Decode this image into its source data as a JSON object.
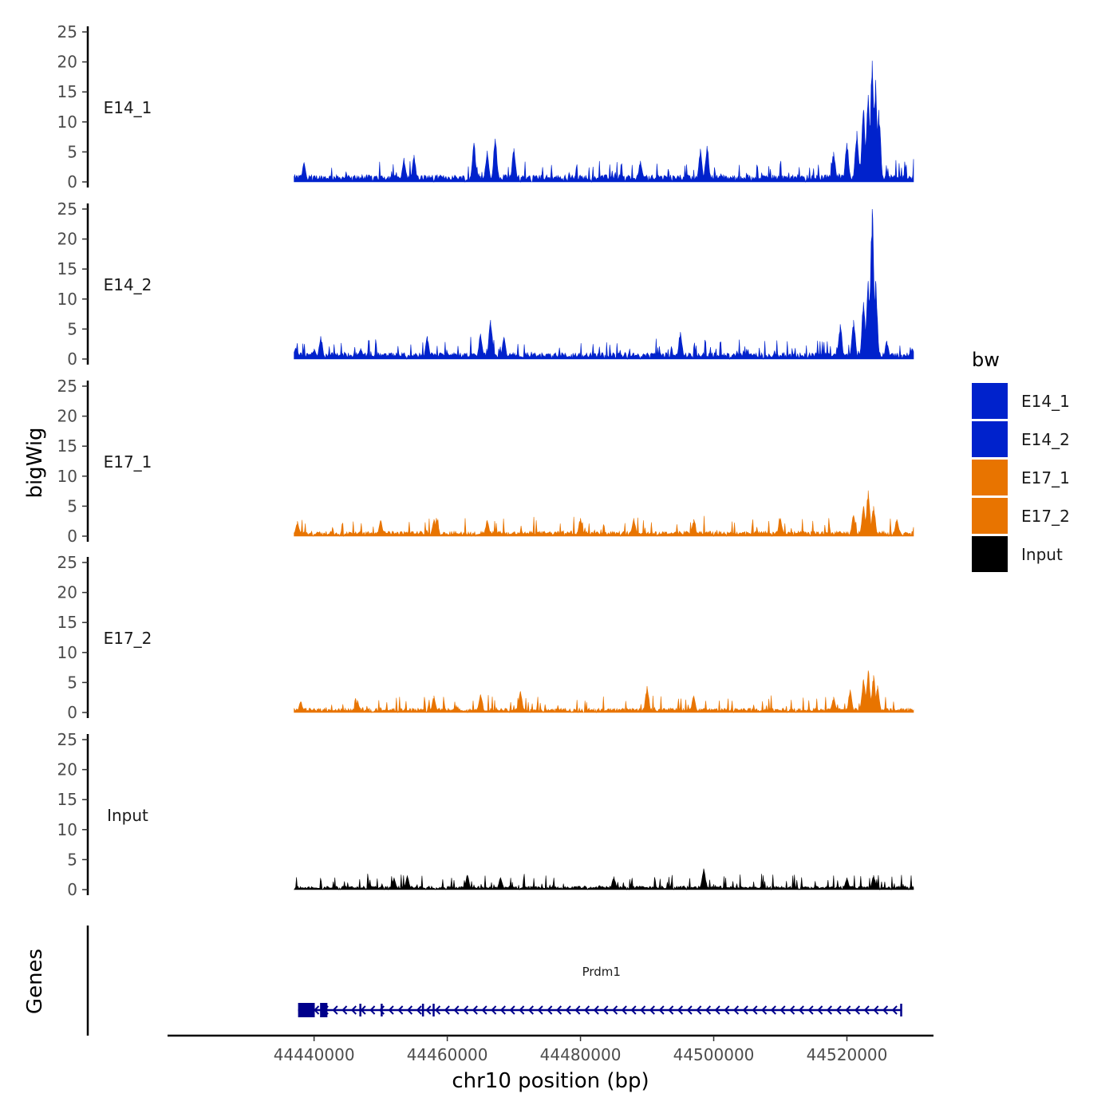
{
  "chart_data": {
    "type": "area",
    "chromosome": "chr10",
    "xlabel": "chr10 position (bp)",
    "ylabel": "bigWig",
    "genes_label": "Genes",
    "xlim": [
      44418000,
      44533000
    ],
    "data_range": [
      44437000,
      44530000
    ],
    "ylim": [
      0,
      25
    ],
    "yticks": [
      0,
      5,
      10,
      15,
      20,
      25
    ],
    "xticks": [
      44440000,
      44460000,
      44480000,
      44500000,
      44520000
    ],
    "grid": false,
    "legend": {
      "title": "bw",
      "position": "right",
      "entries": [
        {
          "label": "E14_1",
          "color": "#0022CC"
        },
        {
          "label": "E14_2",
          "color": "#0022CC"
        },
        {
          "label": "E17_1",
          "color": "#E87400"
        },
        {
          "label": "E17_2",
          "color": "#E87400"
        },
        {
          "label": "Input",
          "color": "#000000"
        }
      ]
    },
    "tracks": [
      {
        "name": "E14_1",
        "color": "#0022CC",
        "baseline": 1.0,
        "noise": 1.3,
        "peaks": [
          {
            "x": 44438500,
            "y": 3.2
          },
          {
            "x": 44453500,
            "y": 4.0
          },
          {
            "x": 44455000,
            "y": 4.5
          },
          {
            "x": 44464000,
            "y": 6.5
          },
          {
            "x": 44466000,
            "y": 5.2
          },
          {
            "x": 44467200,
            "y": 7.2
          },
          {
            "x": 44470000,
            "y": 5.6
          },
          {
            "x": 44489000,
            "y": 3.5
          },
          {
            "x": 44498000,
            "y": 5.5
          },
          {
            "x": 44499000,
            "y": 6.0
          },
          {
            "x": 44518000,
            "y": 5.0
          },
          {
            "x": 44520000,
            "y": 6.5
          },
          {
            "x": 44521500,
            "y": 8.5
          },
          {
            "x": 44522500,
            "y": 12.0
          },
          {
            "x": 44523200,
            "y": 14.5
          },
          {
            "x": 44523800,
            "y": 20.2
          },
          {
            "x": 44524300,
            "y": 17.0
          },
          {
            "x": 44524800,
            "y": 12.0
          }
        ]
      },
      {
        "name": "E14_2",
        "color": "#0022CC",
        "baseline": 0.9,
        "noise": 1.2,
        "peaks": [
          {
            "x": 44437200,
            "y": 1.8
          },
          {
            "x": 44440000,
            "y": 1.7
          },
          {
            "x": 44441000,
            "y": 3.8
          },
          {
            "x": 44447000,
            "y": 1.8
          },
          {
            "x": 44457000,
            "y": 3.8
          },
          {
            "x": 44465000,
            "y": 4.2
          },
          {
            "x": 44466500,
            "y": 6.5
          },
          {
            "x": 44468500,
            "y": 3.6
          },
          {
            "x": 44495000,
            "y": 4.5
          },
          {
            "x": 44519000,
            "y": 5.8
          },
          {
            "x": 44521000,
            "y": 6.5
          },
          {
            "x": 44522500,
            "y": 9.5
          },
          {
            "x": 44523200,
            "y": 13.0
          },
          {
            "x": 44523800,
            "y": 25.0
          },
          {
            "x": 44524300,
            "y": 13.0
          },
          {
            "x": 44526000,
            "y": 3.0
          },
          {
            "x": 44529800,
            "y": 1.7
          }
        ]
      },
      {
        "name": "E17_1",
        "color": "#E87400",
        "baseline": 0.7,
        "noise": 1.2,
        "peaks": [
          {
            "x": 44437500,
            "y": 2.5
          },
          {
            "x": 44450000,
            "y": 2.6
          },
          {
            "x": 44458000,
            "y": 2.8
          },
          {
            "x": 44466000,
            "y": 2.6
          },
          {
            "x": 44480000,
            "y": 3.0
          },
          {
            "x": 44488000,
            "y": 3.0
          },
          {
            "x": 44497000,
            "y": 2.8
          },
          {
            "x": 44510000,
            "y": 3.0
          },
          {
            "x": 44521000,
            "y": 3.5
          },
          {
            "x": 44522500,
            "y": 5.0
          },
          {
            "x": 44523200,
            "y": 7.6
          },
          {
            "x": 44524000,
            "y": 5.0
          },
          {
            "x": 44527500,
            "y": 2.8
          }
        ]
      },
      {
        "name": "E17_2",
        "color": "#E87400",
        "baseline": 0.6,
        "noise": 1.1,
        "peaks": [
          {
            "x": 44438000,
            "y": 1.8
          },
          {
            "x": 44446500,
            "y": 2.0
          },
          {
            "x": 44458000,
            "y": 2.8
          },
          {
            "x": 44465000,
            "y": 3.0
          },
          {
            "x": 44471000,
            "y": 3.5
          },
          {
            "x": 44490000,
            "y": 4.4
          },
          {
            "x": 44497000,
            "y": 2.8
          },
          {
            "x": 44518000,
            "y": 2.6
          },
          {
            "x": 44520500,
            "y": 3.8
          },
          {
            "x": 44522500,
            "y": 5.5
          },
          {
            "x": 44523200,
            "y": 7.0
          },
          {
            "x": 44524000,
            "y": 6.2
          },
          {
            "x": 44524600,
            "y": 4.5
          }
        ]
      },
      {
        "name": "Input",
        "color": "#000000",
        "baseline": 0.5,
        "noise": 1.0,
        "peaks": [
          {
            "x": 44452000,
            "y": 2.0
          },
          {
            "x": 44454000,
            "y": 2.3
          },
          {
            "x": 44463000,
            "y": 2.4
          },
          {
            "x": 44468000,
            "y": 2.0
          },
          {
            "x": 44485000,
            "y": 2.2
          },
          {
            "x": 44498500,
            "y": 3.5
          },
          {
            "x": 44520000,
            "y": 2.0
          },
          {
            "x": 44524000,
            "y": 2.4
          }
        ]
      }
    ],
    "gene_track": {
      "gene": "Prdm1",
      "strand": "-",
      "color": "#00008B",
      "start": 44437600,
      "end": 44528200,
      "exons": [
        {
          "start": 44437600,
          "end": 44440100,
          "thick": true
        },
        {
          "start": 44440900,
          "end": 44442000,
          "thick": true
        },
        {
          "start": 44446800,
          "end": 44447000,
          "thick": false
        },
        {
          "start": 44450000,
          "end": 44450200,
          "thick": false
        },
        {
          "start": 44456200,
          "end": 44456500,
          "thick": false
        },
        {
          "start": 44457800,
          "end": 44458100,
          "thick": false
        },
        {
          "start": 44528000,
          "end": 44528200,
          "thick": false
        }
      ]
    }
  }
}
